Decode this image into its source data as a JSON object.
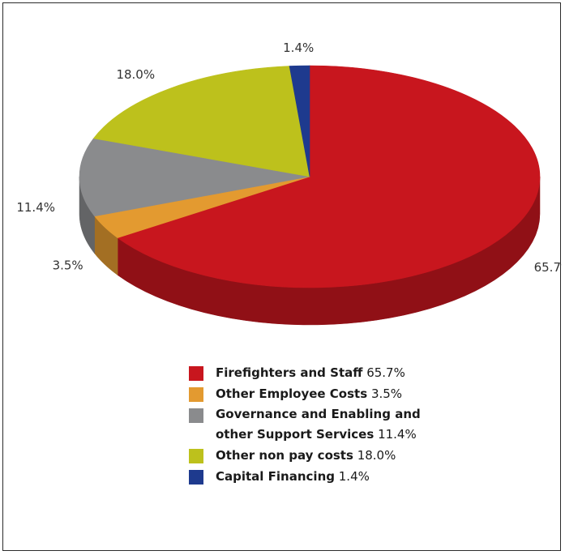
{
  "chart_data": {
    "type": "pie",
    "style": "3d",
    "categories": [
      "Firefighters and Staff",
      "Other Employee Costs",
      "Governance and Enabling and other Support Services",
      "Other non pay costs",
      "Capital Financing"
    ],
    "values": [
      65.7,
      3.5,
      11.4,
      18.0,
      1.4
    ],
    "value_labels": [
      "65.7%",
      "3.5%",
      "11.4%",
      "18.0%",
      "1.4%"
    ],
    "colors": [
      "#c8161e",
      "#e39a30",
      "#8a8b8d",
      "#bdc11c",
      "#1e3a8e"
    ],
    "legend_placement": "bottom"
  },
  "legend": {
    "items": [
      {
        "name": "Firefighters and Staff",
        "value": "65.7%"
      },
      {
        "name": "Other Employee Costs",
        "value": "3.5%"
      },
      {
        "name_line1": "Governance and Enabling and",
        "name_line2": "other Support Services",
        "value": "11.4%"
      },
      {
        "name": "Other non pay costs",
        "value": "18.0%"
      },
      {
        "name": "Capital Financing",
        "value": "1.4%"
      }
    ]
  }
}
